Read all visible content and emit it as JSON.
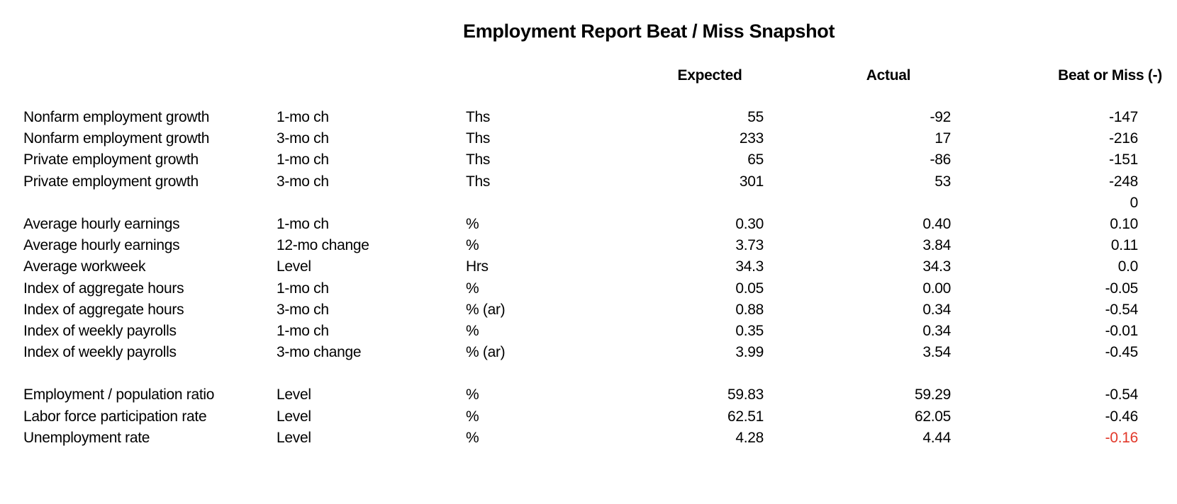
{
  "title": "Employment Report Beat / Miss Snapshot",
  "columns": {
    "expected": "Expected",
    "actual": "Actual",
    "beat_or_miss": "Beat or Miss (-)"
  },
  "colors": {
    "text": "#000000",
    "background": "#ffffff",
    "negative_highlight": "#e2382a"
  },
  "rows": [
    {
      "label": "Nonfarm employment growth",
      "period": "1-mo ch",
      "units": "Ths",
      "expected": "55",
      "actual": "-92",
      "beat_or_miss": "-147",
      "highlight": false
    },
    {
      "label": "Nonfarm employment growth",
      "period": "3-mo ch",
      "units": "Ths",
      "expected": "233",
      "actual": "17",
      "beat_or_miss": "-216",
      "highlight": false
    },
    {
      "label": "Private employment growth",
      "period": "1-mo ch",
      "units": "Ths",
      "expected": "65",
      "actual": "-86",
      "beat_or_miss": "-151",
      "highlight": false
    },
    {
      "label": "Private employment growth",
      "period": "3-mo ch",
      "units": "Ths",
      "expected": "301",
      "actual": "53",
      "beat_or_miss": "-248",
      "highlight": false
    },
    {
      "label": "",
      "period": "",
      "units": "",
      "expected": "",
      "actual": "",
      "beat_or_miss": "0",
      "highlight": false
    },
    {
      "label": "Average hourly earnings",
      "period": "1-mo ch",
      "units": "%",
      "expected": "0.30",
      "actual": "0.40",
      "beat_or_miss": "0.10",
      "highlight": false
    },
    {
      "label": "Average hourly earnings",
      "period": "12-mo change",
      "units": "%",
      "expected": "3.73",
      "actual": "3.84",
      "beat_or_miss": "0.11",
      "highlight": false
    },
    {
      "label": "Average workweek",
      "period": "Level",
      "units": "Hrs",
      "expected": "34.3",
      "actual": "34.3",
      "beat_or_miss": "0.0",
      "highlight": false
    },
    {
      "label": "Index of aggregate hours",
      "period": "1-mo ch",
      "units": "%",
      "expected": "0.05",
      "actual": "0.00",
      "beat_or_miss": "-0.05",
      "highlight": false
    },
    {
      "label": "Index of aggregate hours",
      "period": "3-mo ch",
      "units": "% (ar)",
      "expected": "0.88",
      "actual": "0.34",
      "beat_or_miss": "-0.54",
      "highlight": false
    },
    {
      "label": "Index of weekly payrolls",
      "period": "1-mo ch",
      "units": "%",
      "expected": "0.35",
      "actual": "0.34",
      "beat_or_miss": "-0.01",
      "highlight": false
    },
    {
      "label": "Index of weekly payrolls",
      "period": "3-mo change",
      "units": "% (ar)",
      "expected": "3.99",
      "actual": "3.54",
      "beat_or_miss": "-0.45",
      "highlight": false
    },
    {
      "label": "",
      "period": "",
      "units": "",
      "expected": "",
      "actual": "",
      "beat_or_miss": "",
      "highlight": false
    },
    {
      "label": "Employment / population ratio",
      "period": "Level",
      "units": "%",
      "expected": "59.83",
      "actual": "59.29",
      "beat_or_miss": "-0.54",
      "highlight": false
    },
    {
      "label": "Labor force participation rate",
      "period": "Level",
      "units": "%",
      "expected": "62.51",
      "actual": "62.05",
      "beat_or_miss": "-0.46",
      "highlight": false
    },
    {
      "label": "Unemployment rate",
      "period": "Level",
      "units": "%",
      "expected": "4.28",
      "actual": "4.44",
      "beat_or_miss": "-0.16",
      "highlight": true
    }
  ]
}
